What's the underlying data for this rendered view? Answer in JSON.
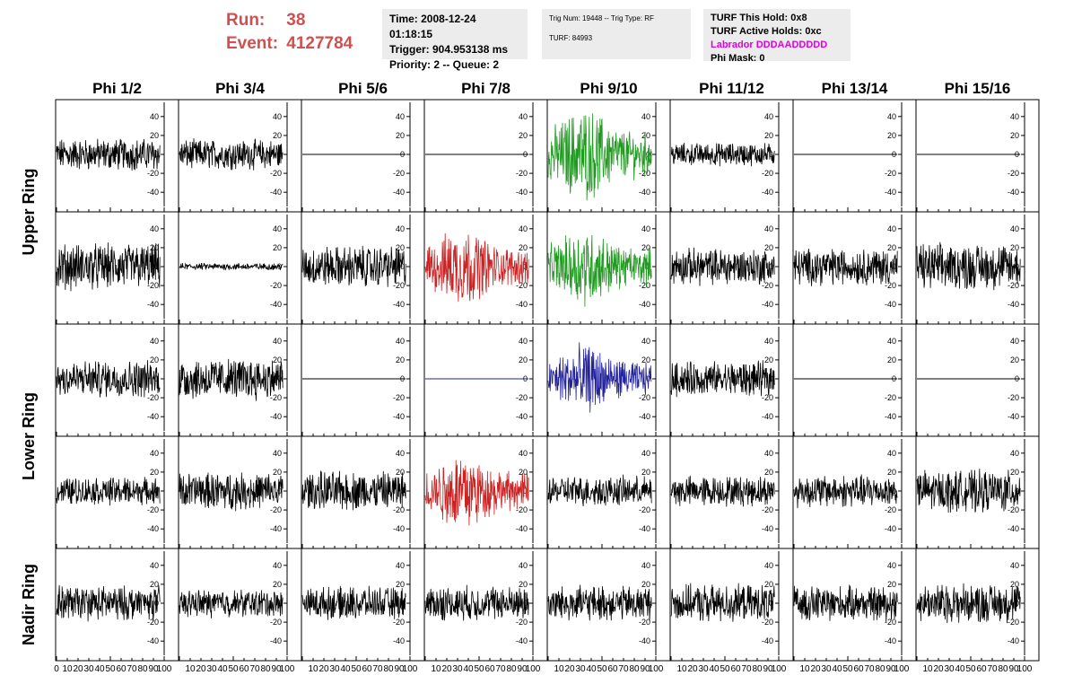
{
  "header": {
    "run_label": "Run:",
    "run_value": "38",
    "event_label": "Event:",
    "event_value": "4127784",
    "time": "Time: 2008-12-24 01:18:15",
    "trigger": "Trigger: 904.953138 ms",
    "priority": "Priority: 2 -- Queue: 2",
    "trig_num": "Trig Num: 19448 -- Trig Type: RF",
    "turf": "TURF: 84993",
    "turf_this_hold": "TURF This Hold: 0x8",
    "turf_active_holds": "TURF Active Holds: 0xc",
    "labrador": "Labrador DDDAADDDDD",
    "phi_mask": "Phi Mask: 0"
  },
  "chart_data": {
    "type": "line",
    "columns": [
      "Phi 1/2",
      "Phi 3/4",
      "Phi 5/6",
      "Phi 7/8",
      "Phi 9/10",
      "Phi 11/12",
      "Phi 13/14",
      "Phi 15/16"
    ],
    "ring_labels": [
      "Upper Ring",
      "Lower Ring",
      "Nadir Ring"
    ],
    "rows": 5,
    "ylim": [
      -55,
      55
    ],
    "xlim": [
      0,
      100
    ],
    "yticks": [
      -40,
      -20,
      0,
      20,
      40
    ],
    "xtick_labels": [
      "0",
      "10",
      "20",
      "30",
      "40",
      "50",
      "60",
      "70",
      "80",
      "90",
      "100"
    ],
    "grid": false,
    "colors": {
      "default": "#000000",
      "red": "#cc2222",
      "green": "#229922",
      "blue": "#222299"
    },
    "panels": [
      [
        {
          "amp": 14,
          "color": "default"
        },
        {
          "amp": 13,
          "color": "default"
        },
        {
          "amp": 0,
          "color": "default"
        },
        {
          "amp": 0,
          "color": "default"
        },
        {
          "amp": 30,
          "color": "green"
        },
        {
          "amp": 10,
          "color": "default"
        },
        {
          "amp": 0,
          "color": "default"
        },
        {
          "amp": 0,
          "color": "default"
        }
      ],
      [
        {
          "amp": 20,
          "color": "default"
        },
        {
          "amp": 3,
          "color": "default"
        },
        {
          "amp": 18,
          "color": "default"
        },
        {
          "amp": 25,
          "color": "red"
        },
        {
          "amp": 25,
          "color": "green"
        },
        {
          "amp": 16,
          "color": "default"
        },
        {
          "amp": 16,
          "color": "default"
        },
        {
          "amp": 20,
          "color": "default"
        }
      ],
      [
        {
          "amp": 16,
          "color": "default"
        },
        {
          "amp": 18,
          "color": "default"
        },
        {
          "amp": 0,
          "color": "default"
        },
        {
          "amp": 0,
          "color": "blue"
        },
        {
          "amp": 22,
          "color": "blue"
        },
        {
          "amp": 15,
          "color": "default"
        },
        {
          "amp": 0,
          "color": "default"
        },
        {
          "amp": 0,
          "color": "default"
        }
      ],
      [
        {
          "amp": 12,
          "color": "default"
        },
        {
          "amp": 16,
          "color": "default"
        },
        {
          "amp": 17,
          "color": "default"
        },
        {
          "amp": 25,
          "color": "red"
        },
        {
          "amp": 13,
          "color": "default"
        },
        {
          "amp": 13,
          "color": "default"
        },
        {
          "amp": 14,
          "color": "default"
        },
        {
          "amp": 18,
          "color": "default"
        }
      ],
      [
        {
          "amp": 15,
          "color": "default"
        },
        {
          "amp": 12,
          "color": "default"
        },
        {
          "amp": 14,
          "color": "default"
        },
        {
          "amp": 15,
          "color": "default"
        },
        {
          "amp": 15,
          "color": "default"
        },
        {
          "amp": 16,
          "color": "default"
        },
        {
          "amp": 15,
          "color": "default"
        },
        {
          "amp": 17,
          "color": "default"
        }
      ]
    ]
  }
}
